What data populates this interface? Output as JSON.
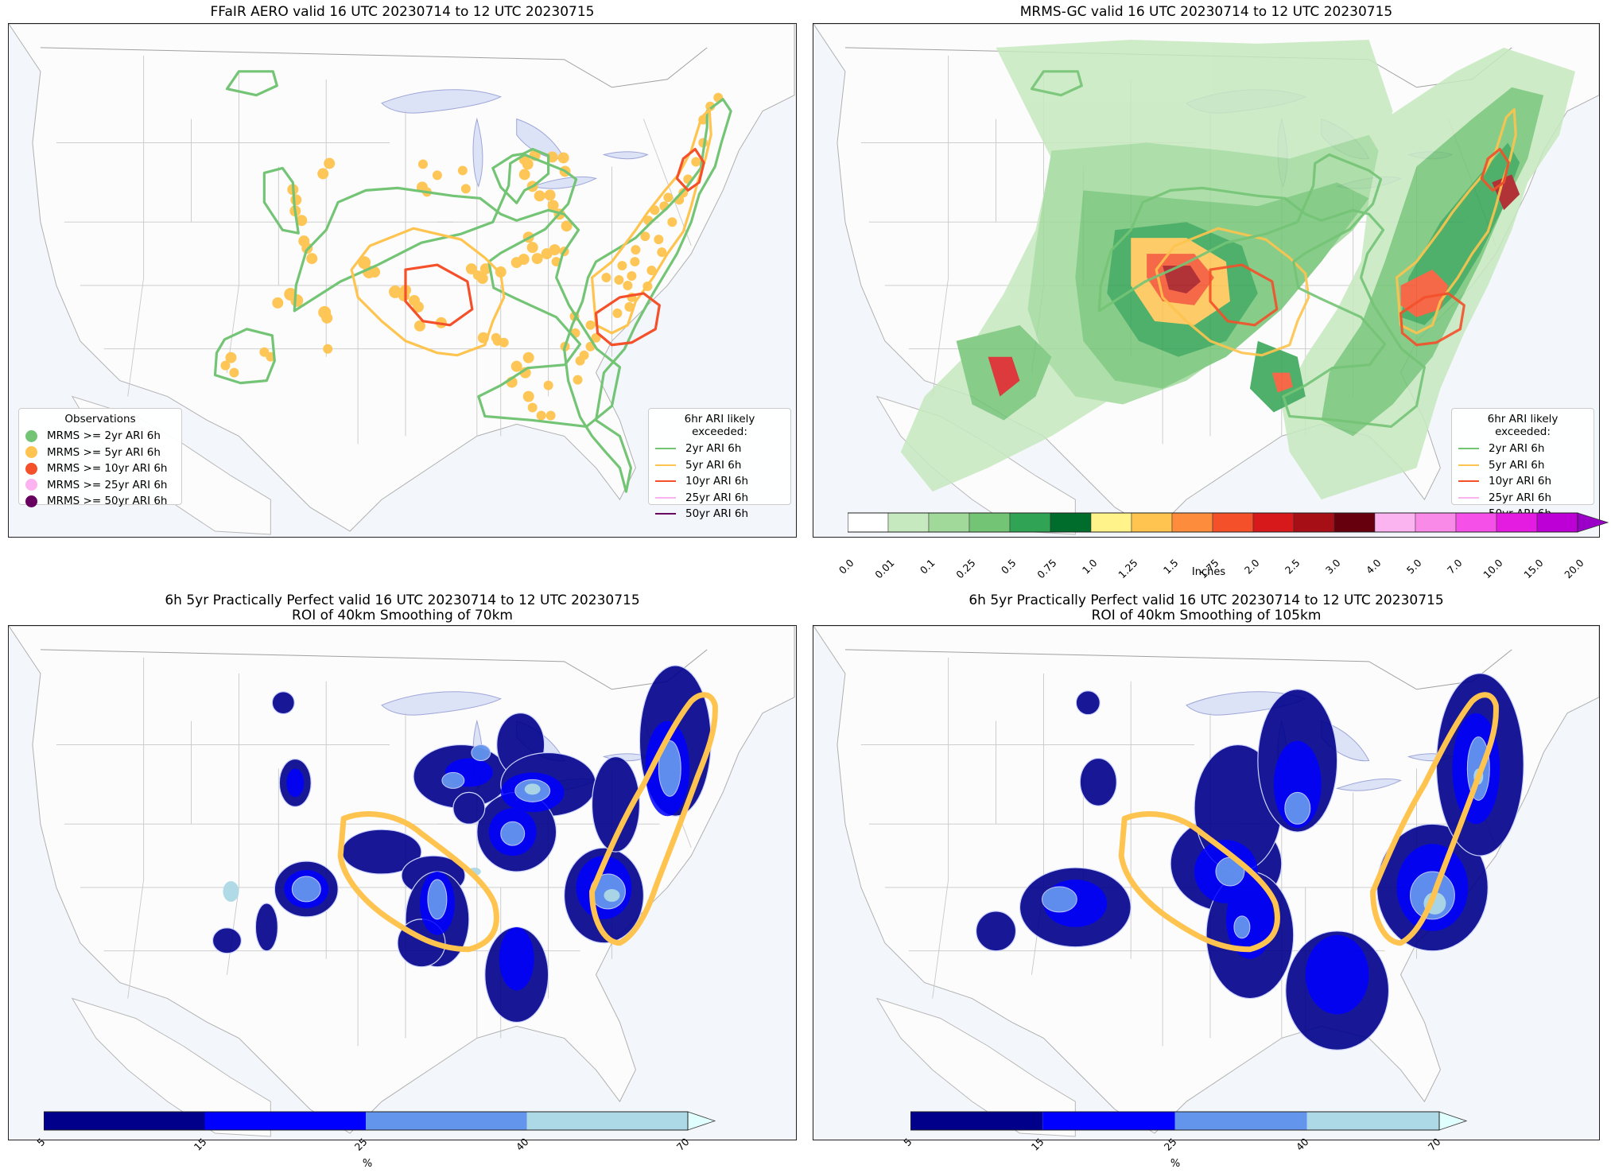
{
  "panels": [
    {
      "title": "FFaIR AERO valid 16 UTC 20230714 to 12 UTC 20230715"
    },
    {
      "title": "MRMS-GC valid 16 UTC 20230714 to 12 UTC 20230715"
    },
    {
      "title": "6h 5yr Practically Perfect valid 16 UTC 20230714 to 12 UTC 20230715\nROI of 40km Smoothing of 70km"
    },
    {
      "title": "6h 5yr Practically Perfect valid 16 UTC 20230714 to 12 UTC 20230715\nROI of 40km Smoothing of 105km"
    }
  ],
  "observations_legend": {
    "title": "Observations",
    "items": [
      {
        "label": "MRMS >= 2yr ARI 6h",
        "color": "#74c476"
      },
      {
        "label": "MRMS >= 5yr ARI 6h",
        "color": "#fec44f"
      },
      {
        "label": "MRMS >= 10yr ARI 6h",
        "color": "#f4502a"
      },
      {
        "label": "MRMS >= 25yr ARI 6h",
        "color": "#fbb4f0"
      },
      {
        "label": "MRMS >= 50yr ARI 6h",
        "color": "#67005f"
      }
    ]
  },
  "ari_legend": {
    "title": "6hr ARI likely exceeded:",
    "items": [
      {
        "label": "2yr ARI 6h",
        "color": "#74c476"
      },
      {
        "label": "5yr ARI 6h",
        "color": "#fec44f"
      },
      {
        "label": "10yr ARI 6h",
        "color": "#f4502a"
      },
      {
        "label": "25yr ARI 6h",
        "color": "#fbb4f0"
      },
      {
        "label": "50yr ARI 6h",
        "color": "#67005f"
      }
    ]
  },
  "precip_colorbar": {
    "label": "Inches",
    "ticks": [
      "0.0",
      "0.01",
      "0.1",
      "0.25",
      "0.5",
      "0.75",
      "1.0",
      "1.25",
      "1.5",
      "1.75",
      "2.0",
      "2.5",
      "3.0",
      "4.0",
      "5.0",
      "7.0",
      "10.0",
      "15.0",
      "20.0"
    ],
    "colors": [
      "#ffffff",
      "#c7e9c0",
      "#a1d99b",
      "#74c476",
      "#31a354",
      "#006d2c",
      "#fff38a",
      "#fec44f",
      "#fd8d3c",
      "#f4502a",
      "#d7191c",
      "#a50f15",
      "#67000d",
      "#fbb4f0",
      "#f98ae8",
      "#f550e8",
      "#e41be0",
      "#bd00d6"
    ],
    "extend_color": "#9a00c8"
  },
  "prob_colorbars": [
    {
      "label": "%",
      "ticks": [
        "5",
        "15",
        "25",
        "40",
        "70"
      ]
    },
    {
      "label": "%",
      "ticks": [
        "5",
        "15",
        "25",
        "40",
        "70"
      ]
    }
  ],
  "prob_colors": [
    "#00008b",
    "#0000ff",
    "#6495ed",
    "#add8e6"
  ],
  "prob_extend_color": "#e0ffff"
}
